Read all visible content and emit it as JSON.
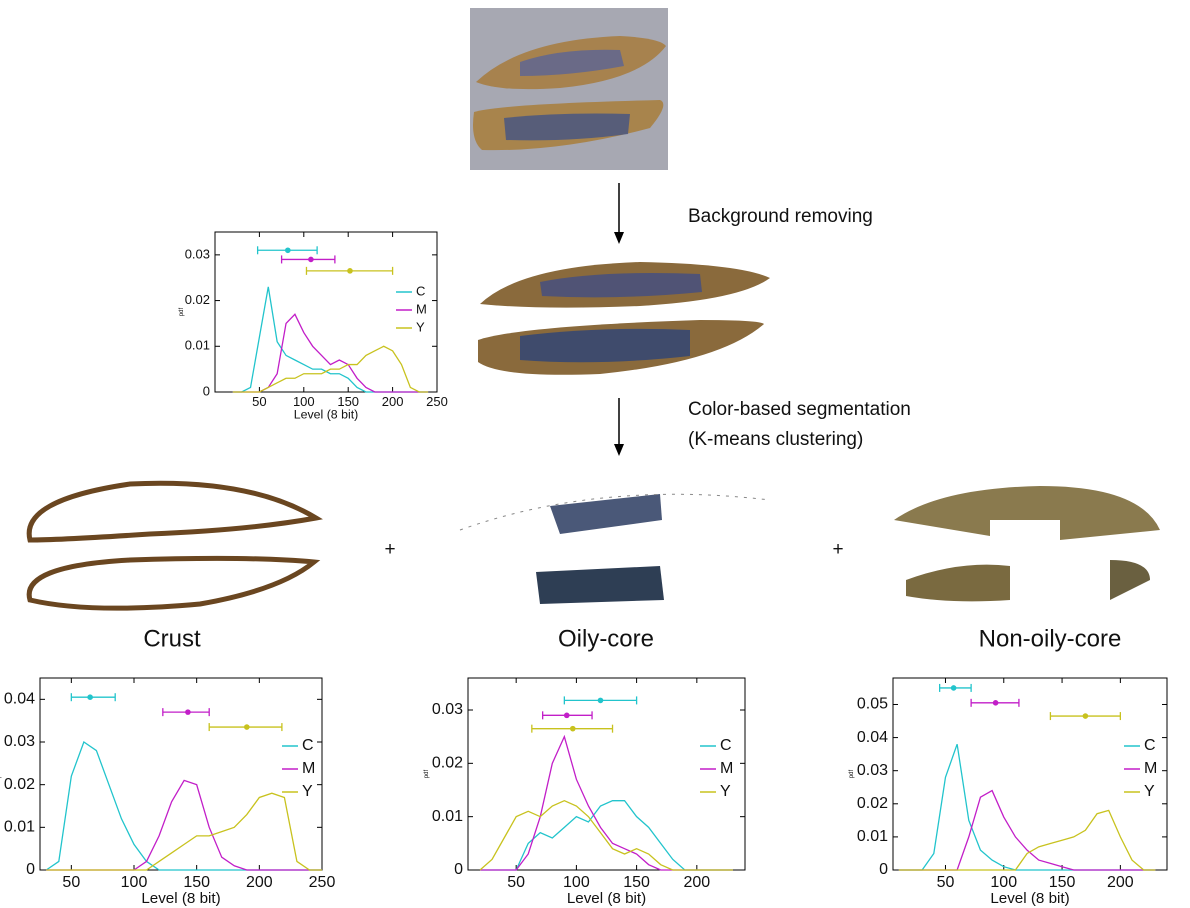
{
  "labels": {
    "step1": "Background removing",
    "step2a": "Color-based segmentation",
    "step2b": "(K-means clustering)",
    "crust": "Crust",
    "oily": "Oily-core",
    "nonoily": "Non-oily-core",
    "plus1": "+",
    "plus2": "+"
  },
  "chart_data": [
    {
      "type": "line",
      "x_label": "Level (8 bit)",
      "y_label": "pdf",
      "x": [
        20,
        30,
        40,
        50,
        60,
        70,
        80,
        90,
        100,
        110,
        120,
        130,
        140,
        150,
        160,
        170,
        180,
        190,
        200,
        210,
        220,
        230,
        240
      ],
      "xlim": [
        0,
        250
      ],
      "xticks": [
        50,
        100,
        150,
        200,
        250
      ],
      "ylim": [
        0,
        0.035
      ],
      "yticks": [
        0,
        0.01,
        0.02,
        0.03
      ],
      "series": [
        {
          "name": "C",
          "color": "#22c4cc",
          "values": [
            0,
            0,
            0.001,
            0.012,
            0.023,
            0.011,
            0.008,
            0.007,
            0.006,
            0.005,
            0.005,
            0.004,
            0.004,
            0.003,
            0.001,
            0,
            0,
            0,
            0,
            0,
            0,
            0,
            0
          ],
          "errorbar": {
            "y": 0.031,
            "mean": 82,
            "low": 48,
            "high": 115
          }
        },
        {
          "name": "M",
          "color": "#c21ec8",
          "values": [
            0,
            0,
            0,
            0,
            0.001,
            0.004,
            0.015,
            0.017,
            0.013,
            0.01,
            0.008,
            0.006,
            0.007,
            0.006,
            0.003,
            0.001,
            0,
            0,
            0,
            0,
            0,
            0,
            0
          ],
          "errorbar": {
            "y": 0.029,
            "mean": 108,
            "low": 75,
            "high": 135
          }
        },
        {
          "name": "Y",
          "color": "#c8c21e",
          "values": [
            0,
            0,
            0,
            0,
            0.001,
            0.002,
            0.003,
            0.003,
            0.004,
            0.004,
            0.004,
            0.005,
            0.005,
            0.006,
            0.006,
            0.008,
            0.009,
            0.01,
            0.009,
            0.006,
            0.001,
            0,
            0
          ],
          "errorbar": {
            "y": 0.0265,
            "mean": 152,
            "low": 103,
            "high": 200
          }
        }
      ]
    },
    {
      "type": "line",
      "x_label": "Level (8 bit)",
      "y_label": "pdf",
      "x": [
        30,
        40,
        50,
        60,
        70,
        80,
        90,
        100,
        110,
        120,
        130,
        140,
        150,
        160,
        170,
        180,
        190,
        200,
        210,
        220,
        230,
        240,
        250
      ],
      "xlim": [
        25,
        250
      ],
      "xticks": [
        50,
        100,
        150,
        200,
        250
      ],
      "ylim": [
        0,
        0.045
      ],
      "yticks": [
        0,
        0.01,
        0.02,
        0.03,
        0.04
      ],
      "series": [
        {
          "name": "C",
          "color": "#22c4cc",
          "values": [
            0,
            0.002,
            0.022,
            0.03,
            0.028,
            0.02,
            0.012,
            0.006,
            0.002,
            0,
            0,
            0,
            0,
            0,
            0,
            0,
            0,
            0,
            0,
            0,
            0,
            0,
            0
          ],
          "errorbar": {
            "y": 0.0405,
            "mean": 65,
            "low": 50,
            "high": 85
          }
        },
        {
          "name": "M",
          "color": "#c21ec8",
          "values": [
            0,
            0,
            0,
            0,
            0,
            0,
            0,
            0,
            0.002,
            0.008,
            0.016,
            0.021,
            0.02,
            0.01,
            0.003,
            0.001,
            0,
            0,
            0,
            0,
            0,
            0,
            0
          ],
          "errorbar": {
            "y": 0.037,
            "mean": 143,
            "low": 123,
            "high": 160
          }
        },
        {
          "name": "Y",
          "color": "#c8c21e",
          "values": [
            0,
            0,
            0,
            0,
            0,
            0,
            0,
            0,
            0,
            0.002,
            0.004,
            0.006,
            0.008,
            0.008,
            0.009,
            0.01,
            0.013,
            0.017,
            0.018,
            0.017,
            0.002,
            0,
            0
          ],
          "errorbar": {
            "y": 0.0335,
            "mean": 190,
            "low": 160,
            "high": 218
          }
        }
      ]
    },
    {
      "type": "line",
      "x_label": "Level (8 bit)",
      "y_label": "pdf",
      "x": [
        20,
        30,
        40,
        50,
        60,
        70,
        80,
        90,
        100,
        110,
        120,
        130,
        140,
        150,
        160,
        170,
        180,
        190,
        200,
        210,
        220,
        230
      ],
      "xlim": [
        10,
        240
      ],
      "xticks": [
        50,
        100,
        150,
        200
      ],
      "ylim": [
        0,
        0.036
      ],
      "yticks": [
        0,
        0.01,
        0.02,
        0.03
      ],
      "series": [
        {
          "name": "C",
          "color": "#22c4cc",
          "values": [
            0,
            0,
            0,
            0,
            0.005,
            0.007,
            0.006,
            0.008,
            0.01,
            0.009,
            0.012,
            0.013,
            0.013,
            0.01,
            0.008,
            0.005,
            0.002,
            0,
            0,
            0,
            0,
            0
          ],
          "errorbar": {
            "y": 0.0318,
            "mean": 120,
            "low": 90,
            "high": 150
          }
        },
        {
          "name": "M",
          "color": "#c21ec8",
          "values": [
            0,
            0,
            0,
            0,
            0.003,
            0.01,
            0.02,
            0.025,
            0.017,
            0.012,
            0.008,
            0.005,
            0.004,
            0.003,
            0.001,
            0,
            0,
            0,
            0,
            0,
            0,
            0
          ],
          "errorbar": {
            "y": 0.029,
            "mean": 92,
            "low": 72,
            "high": 113
          }
        },
        {
          "name": "Y",
          "color": "#c8c21e",
          "values": [
            0,
            0.002,
            0.006,
            0.01,
            0.011,
            0.01,
            0.012,
            0.013,
            0.012,
            0.01,
            0.007,
            0.004,
            0.003,
            0.004,
            0.003,
            0.001,
            0,
            0,
            0,
            0,
            0,
            0
          ],
          "errorbar": {
            "y": 0.0265,
            "mean": 97,
            "low": 63,
            "high": 130
          }
        }
      ]
    },
    {
      "type": "line",
      "x_label": "Level (8 bit)",
      "y_label": "pdf",
      "x": [
        10,
        20,
        30,
        40,
        50,
        60,
        70,
        80,
        90,
        100,
        110,
        120,
        130,
        140,
        150,
        160,
        170,
        180,
        190,
        200,
        210,
        220,
        230
      ],
      "xlim": [
        5,
        240
      ],
      "xticks": [
        50,
        100,
        150,
        200
      ],
      "ylim": [
        0,
        0.058
      ],
      "yticks": [
        0,
        0.01,
        0.02,
        0.03,
        0.04,
        0.05
      ],
      "series": [
        {
          "name": "C",
          "color": "#22c4cc",
          "values": [
            0,
            0,
            0,
            0.005,
            0.028,
            0.038,
            0.015,
            0.006,
            0.003,
            0.001,
            0,
            0,
            0,
            0,
            0,
            0,
            0,
            0,
            0,
            0,
            0,
            0,
            0
          ],
          "errorbar": {
            "y": 0.055,
            "mean": 57,
            "low": 45,
            "high": 72
          }
        },
        {
          "name": "M",
          "color": "#c21ec8",
          "values": [
            0,
            0,
            0,
            0,
            0,
            0,
            0.01,
            0.022,
            0.024,
            0.016,
            0.01,
            0.006,
            0.003,
            0.002,
            0.001,
            0,
            0,
            0,
            0,
            0,
            0,
            0,
            0
          ],
          "errorbar": {
            "y": 0.0505,
            "mean": 93,
            "low": 72,
            "high": 113
          }
        },
        {
          "name": "Y",
          "color": "#c8c21e",
          "values": [
            0,
            0,
            0,
            0,
            0,
            0,
            0,
            0,
            0,
            0,
            0,
            0.005,
            0.007,
            0.008,
            0.009,
            0.01,
            0.012,
            0.017,
            0.018,
            0.01,
            0.003,
            0,
            0
          ],
          "errorbar": {
            "y": 0.0465,
            "mean": 170,
            "low": 140,
            "high": 200
          }
        }
      ]
    }
  ]
}
